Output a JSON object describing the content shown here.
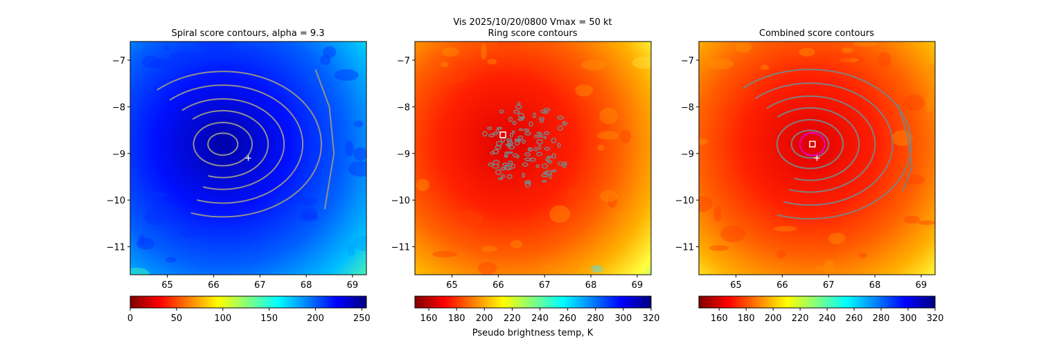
{
  "figure": {
    "suptitle": "Vis  2025/10/20/0800    Vmax = 50 kt"
  },
  "chart_data": [
    {
      "type": "heatmap",
      "title": "Spiral score contours, alpha =  9.3",
      "xlim": [
        64.2,
        69.3
      ],
      "ylim": [
        -11.6,
        -6.6
      ],
      "xticks": [
        "65",
        "66",
        "67",
        "68",
        "69"
      ],
      "yticks": [
        "−7",
        "−8",
        "−9",
        "−10",
        "−11"
      ],
      "xtick_values": [
        65,
        66,
        67,
        68,
        69
      ],
      "ytick_values": [
        -7,
        -8,
        -9,
        -10,
        -11
      ],
      "colormap": "jet_r",
      "center_lon": 66.2,
      "center_lat": -8.8,
      "plus_marker": [
        66.75,
        -9.1
      ],
      "contour_color": "#909090",
      "contours": "spiral",
      "colorbar": {
        "range": [
          0,
          255
        ],
        "ticks": [
          "0",
          "50",
          "100",
          "150",
          "200",
          "250"
        ],
        "tick_values": [
          0,
          50,
          100,
          150,
          200,
          250
        ],
        "label": ""
      }
    },
    {
      "type": "heatmap",
      "title": "Ring score contours",
      "xlim": [
        64.2,
        69.3
      ],
      "ylim": [
        -11.6,
        -6.6
      ],
      "xticks": [
        "65",
        "66",
        "67",
        "68",
        "69"
      ],
      "yticks": [
        "−7",
        "−8",
        "−9",
        "−10",
        "−11"
      ],
      "xtick_values": [
        65,
        66,
        67,
        68,
        69
      ],
      "ytick_values": [
        -7,
        -8,
        -9,
        -10,
        -11
      ],
      "colormap": "jet_r",
      "center_lon": 66.2,
      "center_lat": -8.8,
      "square_marker": [
        66.1,
        -8.6
      ],
      "contour_color": "#808080",
      "contours": "ring",
      "colorbar": {
        "range": [
          150,
          320
        ],
        "ticks": [
          "160",
          "180",
          "200",
          "220",
          "240",
          "260",
          "280",
          "300",
          "320"
        ],
        "tick_values": [
          160,
          180,
          200,
          220,
          240,
          260,
          280,
          300,
          320
        ],
        "label": "Pseudo brightness temp, K"
      }
    },
    {
      "type": "heatmap",
      "title": "Combined score contours",
      "xlim": [
        64.2,
        69.3
      ],
      "ylim": [
        -11.6,
        -6.6
      ],
      "xticks": [
        "65",
        "66",
        "67",
        "68",
        "69"
      ],
      "yticks": [
        "−7",
        "−8",
        "−9",
        "−10",
        "−11"
      ],
      "xtick_values": [
        65,
        66,
        67,
        68,
        69
      ],
      "ytick_values": [
        -7,
        -8,
        -9,
        -10,
        -11
      ],
      "colormap": "jet_r",
      "center_lon": 66.6,
      "center_lat": -8.8,
      "square_marker": [
        66.65,
        -8.8
      ],
      "plus_marker": [
        66.75,
        -9.1
      ],
      "ring_marker": [
        66.65,
        -8.8
      ],
      "ring_radius_deg": 0.27,
      "contour_color": "#808080",
      "contours": "combined",
      "colorbar": {
        "range": [
          145,
          320
        ],
        "ticks": [
          "160",
          "180",
          "200",
          "220",
          "240",
          "260",
          "280",
          "300",
          "320"
        ],
        "tick_values": [
          160,
          180,
          200,
          220,
          240,
          260,
          280,
          300,
          320
        ],
        "label": ""
      }
    }
  ]
}
